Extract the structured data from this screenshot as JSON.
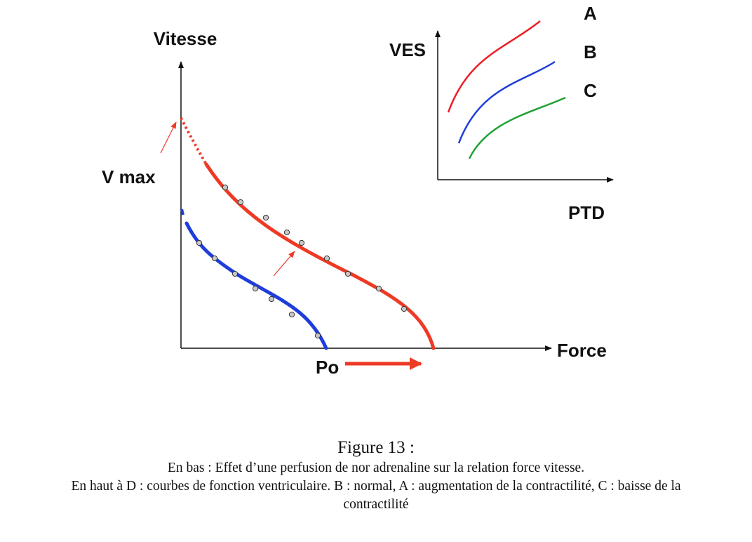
{
  "main_plot": {
    "y_axis_label": "Vitesse",
    "x_axis_label": "Force",
    "vmax_label": "V max",
    "po_label": "Po",
    "colors": {
      "blue": "#1f3ddb",
      "red": "#ee3a24",
      "marker_fill": "#c8c8c8"
    }
  },
  "inset_plot": {
    "y_axis_label": "VES",
    "x_axis_label": "PTD",
    "curve_labels": [
      "A",
      "B",
      "C"
    ],
    "colors": {
      "A": "#ee1c24",
      "B": "#1f3ddb",
      "C": "#22a035"
    }
  },
  "caption": {
    "title": "Figure 13 :",
    "line1": "En bas : Effet d’une perfusion de nor adrenaline sur la relation force vitesse.",
    "line2": "En haut à D : courbes de fonction ventriculaire. B : normal, A : augmentation de la contractilité, C : baisse de la",
    "line3": "contractilité"
  }
}
